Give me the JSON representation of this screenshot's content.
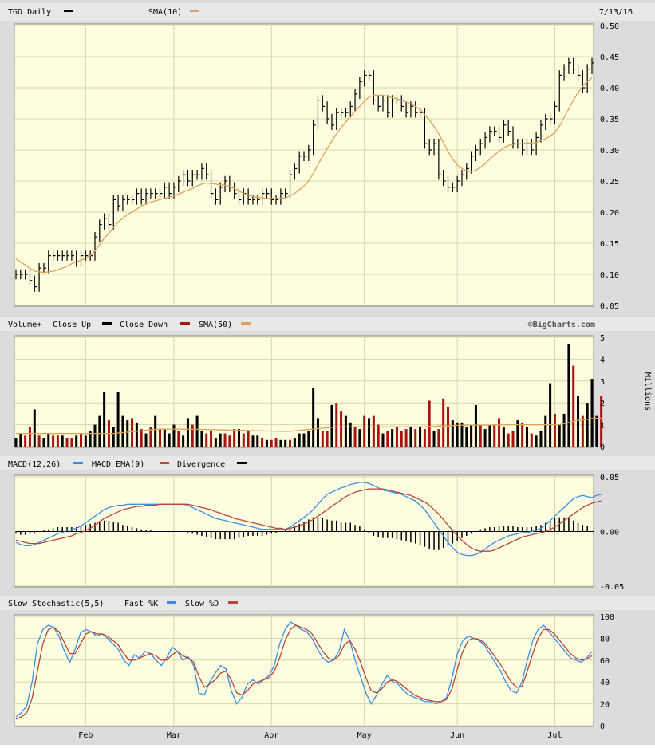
{
  "header": {
    "ticker_label": "TGD Daily",
    "sma_label": "SMA(10)",
    "date": "7/13/16"
  },
  "volume_header": {
    "title": "Volume+",
    "close_up": "Close Up",
    "close_down": "Close Down",
    "sma": "SMA(50)",
    "source": "©BigCharts.com"
  },
  "macd_header": {
    "macd": "MACD(12,26)",
    "ema": "MACD EMA(9)",
    "divergence": "Divergence"
  },
  "stoch_header": {
    "title": "Slow Stochastic(5,5)",
    "fast": "Fast %K",
    "slow": "Slow %D"
  },
  "volume_unit": "Millions",
  "colors": {
    "up": "#000000",
    "down": "#aa1111",
    "sma": "#d9a35a",
    "macd": "#3a8ee6",
    "signal": "#b5483a",
    "panel_bg": "#fffde0",
    "grid": "#d6d6a8"
  },
  "chart_data": {
    "type": "ohlc_with_indicators",
    "x_ticks": [
      {
        "label": "Feb",
        "index": 15
      },
      {
        "label": "Mar",
        "index": 34
      },
      {
        "label": "Apr",
        "index": 55
      },
      {
        "label": "May",
        "index": 75
      },
      {
        "label": "Jun",
        "index": 95
      },
      {
        "label": "Jul",
        "index": 116
      }
    ],
    "price": {
      "ylim": [
        0.05,
        0.5
      ],
      "ticks": [
        "0.05",
        "0.10",
        "0.15",
        "0.20",
        "0.25",
        "0.30",
        "0.35",
        "0.40",
        "0.45",
        "0.50"
      ],
      "close": [
        0.1,
        0.1,
        0.1,
        0.09,
        0.08,
        0.11,
        0.11,
        0.13,
        0.13,
        0.13,
        0.13,
        0.13,
        0.13,
        0.12,
        0.13,
        0.13,
        0.13,
        0.16,
        0.18,
        0.19,
        0.18,
        0.22,
        0.21,
        0.22,
        0.22,
        0.22,
        0.23,
        0.22,
        0.23,
        0.23,
        0.23,
        0.23,
        0.24,
        0.23,
        0.24,
        0.25,
        0.26,
        0.25,
        0.26,
        0.26,
        0.27,
        0.26,
        0.23,
        0.22,
        0.24,
        0.25,
        0.24,
        0.23,
        0.22,
        0.23,
        0.22,
        0.22,
        0.22,
        0.23,
        0.23,
        0.22,
        0.22,
        0.23,
        0.23,
        0.26,
        0.27,
        0.29,
        0.29,
        0.3,
        0.34,
        0.38,
        0.37,
        0.35,
        0.34,
        0.36,
        0.36,
        0.36,
        0.37,
        0.39,
        0.41,
        0.42,
        0.42,
        0.38,
        0.37,
        0.38,
        0.36,
        0.38,
        0.38,
        0.37,
        0.36,
        0.37,
        0.36,
        0.36,
        0.31,
        0.3,
        0.31,
        0.26,
        0.25,
        0.24,
        0.24,
        0.25,
        0.26,
        0.27,
        0.29,
        0.3,
        0.31,
        0.32,
        0.33,
        0.33,
        0.32,
        0.34,
        0.33,
        0.31,
        0.31,
        0.3,
        0.31,
        0.3,
        0.32,
        0.34,
        0.35,
        0.35,
        0.37,
        0.42,
        0.43,
        0.44,
        0.43,
        0.42,
        0.4,
        0.43,
        0.44
      ],
      "sma10": [
        0.125,
        0.12,
        0.115,
        0.11,
        0.105,
        0.104,
        0.103,
        0.104,
        0.105,
        0.107,
        0.11,
        0.113,
        0.117,
        0.12,
        0.123,
        0.126,
        0.13,
        0.138,
        0.148,
        0.158,
        0.166,
        0.175,
        0.184,
        0.19,
        0.196,
        0.2,
        0.205,
        0.21,
        0.213,
        0.216,
        0.218,
        0.22,
        0.222,
        0.224,
        0.226,
        0.229,
        0.232,
        0.235,
        0.238,
        0.242,
        0.245,
        0.247,
        0.246,
        0.245,
        0.244,
        0.243,
        0.241,
        0.238,
        0.234,
        0.23,
        0.227,
        0.225,
        0.224,
        0.223,
        0.222,
        0.222,
        0.222,
        0.222,
        0.223,
        0.226,
        0.23,
        0.236,
        0.242,
        0.25,
        0.262,
        0.276,
        0.29,
        0.302,
        0.314,
        0.326,
        0.336,
        0.345,
        0.354,
        0.362,
        0.37,
        0.378,
        0.385,
        0.388,
        0.388,
        0.388,
        0.386,
        0.384,
        0.382,
        0.38,
        0.377,
        0.374,
        0.37,
        0.365,
        0.357,
        0.348,
        0.338,
        0.326,
        0.312,
        0.298,
        0.285,
        0.276,
        0.27,
        0.266,
        0.265,
        0.267,
        0.272,
        0.278,
        0.285,
        0.292,
        0.298,
        0.303,
        0.307,
        0.309,
        0.31,
        0.31,
        0.311,
        0.311,
        0.312,
        0.315,
        0.318,
        0.322,
        0.328,
        0.338,
        0.352,
        0.366,
        0.38,
        0.392,
        0.402,
        0.41,
        0.416
      ]
    },
    "volume": {
      "unit": "Millions",
      "ylim": [
        0,
        5
      ],
      "ticks": [
        "0",
        "1",
        "2",
        "3",
        "4",
        "5"
      ],
      "values": [
        0.4,
        0.6,
        0.5,
        0.9,
        1.7,
        0.5,
        0.4,
        0.6,
        0.5,
        0.5,
        0.5,
        0.4,
        0.4,
        0.5,
        0.6,
        0.5,
        0.7,
        1.0,
        1.4,
        2.5,
        1.2,
        0.9,
        2.5,
        1.4,
        1.2,
        1.3,
        1.1,
        0.8,
        0.6,
        0.9,
        1.4,
        0.8,
        0.8,
        0.6,
        1.0,
        0.7,
        0.5,
        1.3,
        1.0,
        1.4,
        0.7,
        0.6,
        0.7,
        0.4,
        0.6,
        0.6,
        0.5,
        0.8,
        0.8,
        0.6,
        0.7,
        0.5,
        0.5,
        0.4,
        0.3,
        0.3,
        0.4,
        0.3,
        0.3,
        0.3,
        0.4,
        0.6,
        0.6,
        0.7,
        2.7,
        1.3,
        0.7,
        0.7,
        1.9,
        2.0,
        1.6,
        1.4,
        1.1,
        0.9,
        0.8,
        1.4,
        1.3,
        1.4,
        1.0,
        0.6,
        0.7,
        0.8,
        0.9,
        0.7,
        0.8,
        0.9,
        0.8,
        0.9,
        0.8,
        2.1,
        0.7,
        0.8,
        2.2,
        1.8,
        1.2,
        1.1,
        1.1,
        0.9,
        1.0,
        1.9,
        1.0,
        0.8,
        1.0,
        1.0,
        1.3,
        0.9,
        0.6,
        0.7,
        1.2,
        1.1,
        0.9,
        0.6,
        0.5,
        0.7,
        1.4,
        2.9,
        1.5,
        1.0,
        1.5,
        4.7,
        3.7,
        2.3,
        1.4,
        2.0,
        3.1,
        1.4,
        2.3
      ],
      "close_up": [
        1,
        1,
        0,
        0,
        1,
        0,
        1,
        1,
        0,
        0,
        1,
        0,
        0,
        1,
        0,
        1,
        1,
        1,
        1,
        1,
        0,
        1,
        1,
        1,
        1,
        0,
        1,
        0,
        1,
        0,
        1,
        0,
        1,
        1,
        1,
        0,
        1,
        1,
        0,
        1,
        1,
        0,
        0,
        1,
        1,
        0,
        0,
        0,
        1,
        0,
        0,
        1,
        1,
        0,
        1,
        0,
        0,
        1,
        1,
        0,
        1,
        1,
        1,
        1,
        1,
        1,
        0,
        0,
        1,
        0,
        0,
        1,
        1,
        0,
        1,
        0,
        1,
        0,
        0,
        1,
        0,
        1,
        0,
        0,
        0,
        1,
        0,
        1,
        0,
        0,
        1,
        0,
        0,
        0,
        1,
        1,
        1,
        1,
        1,
        1,
        0,
        1,
        1,
        0,
        0,
        1,
        0,
        0,
        1,
        0,
        1,
        0,
        1,
        1,
        1,
        1,
        0,
        1,
        1,
        1,
        0,
        1,
        0,
        1,
        1,
        1
      ],
      "sma50": [
        0.6,
        0.6,
        0.6,
        0.6,
        0.6,
        0.6,
        0.6,
        0.6,
        0.6,
        0.6,
        0.6,
        0.6,
        0.6,
        0.6,
        0.6,
        0.6,
        0.6,
        0.6,
        0.6,
        0.6,
        0.6,
        0.6,
        0.62,
        0.64,
        0.66,
        0.68,
        0.7,
        0.72,
        0.74,
        0.76,
        0.78,
        0.8,
        0.8,
        0.8,
        0.8,
        0.8,
        0.79,
        0.79,
        0.79,
        0.79,
        0.78,
        0.78,
        0.77,
        0.77,
        0.76,
        0.76,
        0.75,
        0.75,
        0.74,
        0.74,
        0.73,
        0.73,
        0.72,
        0.72,
        0.71,
        0.71,
        0.7,
        0.7,
        0.7,
        0.7,
        0.72,
        0.74,
        0.76,
        0.78,
        0.8,
        0.82,
        0.84,
        0.86,
        0.88,
        0.9,
        0.9,
        0.9,
        0.9,
        0.9,
        0.9,
        0.9,
        0.9,
        0.9,
        0.9,
        0.9,
        0.9,
        0.9,
        0.9,
        0.9,
        0.9,
        0.9,
        0.9,
        0.9,
        0.9,
        0.92,
        0.92,
        0.94,
        0.94,
        0.95,
        0.96,
        0.97,
        0.98,
        0.98,
        0.98,
        0.98,
        0.98,
        0.98,
        0.98,
        0.99,
        0.99,
        0.99,
        1.0,
        1.0,
        1.0,
        1.0,
        1.0,
        1.0,
        1.0,
        1.0,
        1.0,
        1.0,
        1.0,
        1.0,
        1.05,
        1.1,
        1.15,
        1.2,
        1.22,
        1.25,
        1.28,
        1.3,
        1.3
      ]
    },
    "macd": {
      "ylim": [
        -0.05,
        0.05
      ],
      "ticks": [
        "0.05",
        "0.00",
        "-0.05"
      ],
      "macd": [
        -0.01,
        -0.012,
        -0.013,
        -0.013,
        -0.012,
        -0.01,
        -0.008,
        -0.006,
        -0.004,
        -0.002,
        -0.001,
        0.001,
        0.002,
        0.003,
        0.005,
        0.008,
        0.011,
        0.014,
        0.017,
        0.02,
        0.022,
        0.023,
        0.024,
        0.024,
        0.025,
        0.025,
        0.025,
        0.025,
        0.025,
        0.025,
        0.025,
        0.025,
        0.025,
        0.025,
        0.025,
        0.025,
        0.025,
        0.024,
        0.022,
        0.02,
        0.018,
        0.016,
        0.014,
        0.012,
        0.011,
        0.01,
        0.009,
        0.008,
        0.007,
        0.006,
        0.005,
        0.004,
        0.003,
        0.002,
        0.002,
        0.002,
        0.002,
        0.002,
        0.002,
        0.004,
        0.007,
        0.01,
        0.013,
        0.016,
        0.02,
        0.025,
        0.03,
        0.034,
        0.036,
        0.038,
        0.04,
        0.041,
        0.043,
        0.044,
        0.045,
        0.045,
        0.044,
        0.042,
        0.04,
        0.038,
        0.037,
        0.036,
        0.035,
        0.034,
        0.032,
        0.03,
        0.028,
        0.024,
        0.02,
        0.014,
        0.008,
        0.002,
        -0.004,
        -0.01,
        -0.015,
        -0.019,
        -0.021,
        -0.022,
        -0.022,
        -0.021,
        -0.019,
        -0.016,
        -0.013,
        -0.01,
        -0.008,
        -0.006,
        -0.004,
        -0.003,
        -0.002,
        -0.001,
        -0.001,
        0.0,
        0.001,
        0.003,
        0.006,
        0.01,
        0.014,
        0.018,
        0.022,
        0.026,
        0.03,
        0.032,
        0.033,
        0.032,
        0.031,
        0.033,
        0.034
      ],
      "signal": [
        -0.008,
        -0.009,
        -0.01,
        -0.011,
        -0.011,
        -0.011,
        -0.01,
        -0.009,
        -0.008,
        -0.007,
        -0.006,
        -0.005,
        -0.004,
        -0.002,
        -0.001,
        0.001,
        0.003,
        0.006,
        0.009,
        0.012,
        0.014,
        0.016,
        0.018,
        0.02,
        0.021,
        0.022,
        0.023,
        0.023,
        0.024,
        0.024,
        0.024,
        0.025,
        0.025,
        0.025,
        0.025,
        0.025,
        0.025,
        0.025,
        0.024,
        0.023,
        0.022,
        0.021,
        0.02,
        0.018,
        0.017,
        0.015,
        0.014,
        0.012,
        0.011,
        0.01,
        0.009,
        0.008,
        0.007,
        0.006,
        0.005,
        0.004,
        0.003,
        0.003,
        0.002,
        0.003,
        0.004,
        0.005,
        0.007,
        0.009,
        0.011,
        0.014,
        0.017,
        0.02,
        0.023,
        0.026,
        0.029,
        0.032,
        0.034,
        0.036,
        0.037,
        0.038,
        0.039,
        0.039,
        0.039,
        0.039,
        0.038,
        0.037,
        0.036,
        0.035,
        0.034,
        0.033,
        0.031,
        0.029,
        0.027,
        0.024,
        0.02,
        0.016,
        0.011,
        0.006,
        0.001,
        -0.004,
        -0.008,
        -0.012,
        -0.015,
        -0.017,
        -0.018,
        -0.018,
        -0.018,
        -0.017,
        -0.015,
        -0.013,
        -0.011,
        -0.009,
        -0.007,
        -0.005,
        -0.004,
        -0.003,
        -0.002,
        -0.001,
        0.0,
        0.002,
        0.004,
        0.007,
        0.01,
        0.013,
        0.016,
        0.019,
        0.022,
        0.024,
        0.026,
        0.027,
        0.028
      ],
      "divergence": [
        -0.002,
        -0.003,
        -0.003,
        -0.002,
        -0.002,
        0.0,
        0.001,
        0.002,
        0.003,
        0.004,
        0.004,
        0.004,
        0.004,
        0.004,
        0.005,
        0.006,
        0.007,
        0.008,
        0.009,
        0.01,
        0.01,
        0.009,
        0.008,
        0.006,
        0.005,
        0.004,
        0.003,
        0.002,
        0.001,
        0.001,
        0.0,
        0.0,
        0.0,
        0.0,
        0.0,
        0.0,
        0.0,
        -0.001,
        -0.002,
        -0.003,
        -0.004,
        -0.005,
        -0.006,
        -0.007,
        -0.007,
        -0.007,
        -0.007,
        -0.007,
        -0.006,
        -0.005,
        -0.004,
        -0.004,
        -0.004,
        -0.004,
        -0.003,
        -0.002,
        -0.001,
        0.0,
        0.001,
        0.003,
        0.005,
        0.007,
        0.009,
        0.011,
        0.013,
        0.012,
        0.012,
        0.011,
        0.01,
        0.01,
        0.009,
        0.008,
        0.008,
        0.006,
        0.005,
        0.002,
        -0.002,
        -0.004,
        -0.005,
        -0.006,
        -0.006,
        -0.006,
        -0.007,
        -0.008,
        -0.009,
        -0.01,
        -0.011,
        -0.012,
        -0.014,
        -0.016,
        -0.017,
        -0.017,
        -0.015,
        -0.013,
        -0.011,
        -0.009,
        -0.006,
        -0.004,
        -0.002,
        0.0,
        0.002,
        0.003,
        0.004,
        0.004,
        0.005,
        0.005,
        0.005,
        0.005,
        0.004,
        0.004,
        0.004,
        0.004,
        0.005,
        0.006,
        0.008,
        0.01,
        0.012,
        0.013,
        0.013,
        0.012,
        0.01,
        0.008,
        0.006,
        0.005
      ]
    },
    "stochastic": {
      "ylim": [
        0,
        100
      ],
      "ticks": [
        "0",
        "20",
        "40",
        "60",
        "80",
        "100"
      ],
      "fast_k": [
        8,
        12,
        18,
        40,
        75,
        88,
        92,
        90,
        82,
        68,
        58,
        70,
        85,
        88,
        86,
        82,
        84,
        80,
        75,
        70,
        60,
        55,
        65,
        62,
        68,
        66,
        60,
        55,
        62,
        72,
        68,
        60,
        63,
        55,
        30,
        28,
        40,
        48,
        55,
        52,
        32,
        20,
        26,
        38,
        42,
        38,
        42,
        46,
        55,
        75,
        88,
        95,
        92,
        88,
        86,
        80,
        70,
        62,
        58,
        60,
        68,
        88,
        78,
        60,
        45,
        30,
        20,
        28,
        38,
        46,
        40,
        38,
        32,
        28,
        26,
        24,
        22,
        22,
        20,
        22,
        26,
        44,
        66,
        78,
        82,
        80,
        78,
        74,
        66,
        58,
        50,
        40,
        32,
        30,
        40,
        60,
        78,
        88,
        92,
        86,
        80,
        74,
        68,
        62,
        60,
        58,
        62,
        68
      ],
      "slow_d": [
        6,
        8,
        12,
        25,
        50,
        75,
        88,
        90,
        86,
        76,
        66,
        66,
        75,
        84,
        86,
        84,
        84,
        82,
        78,
        74,
        66,
        60,
        60,
        62,
        64,
        66,
        64,
        60,
        60,
        65,
        68,
        64,
        62,
        58,
        45,
        35,
        38,
        42,
        48,
        50,
        42,
        30,
        28,
        32,
        38,
        40,
        42,
        44,
        50,
        62,
        78,
        88,
        92,
        90,
        88,
        84,
        76,
        68,
        62,
        60,
        64,
        74,
        78,
        70,
        58,
        44,
        32,
        30,
        34,
        40,
        42,
        40,
        36,
        32,
        28,
        26,
        24,
        23,
        22,
        22,
        24,
        34,
        52,
        68,
        78,
        80,
        79,
        76,
        70,
        63,
        56,
        48,
        40,
        35,
        36,
        50,
        66,
        80,
        88,
        88,
        84,
        78,
        72,
        66,
        62,
        60,
        61,
        64
      ]
    }
  }
}
